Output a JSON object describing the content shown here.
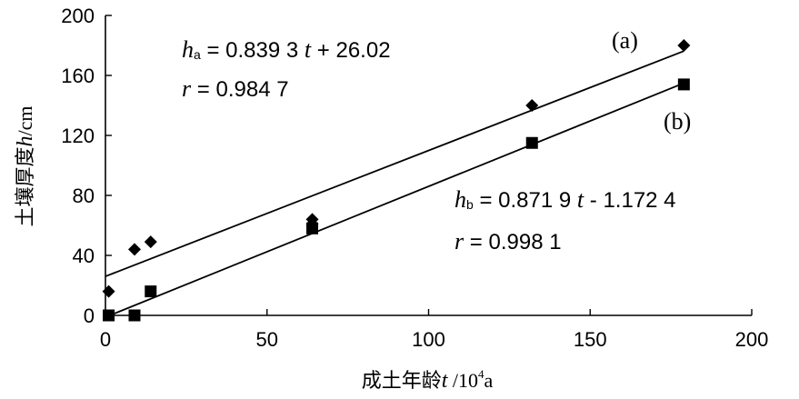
{
  "chart_data": {
    "type": "scatter",
    "xlabel": "成土年龄t /10⁴a",
    "ylabel": "土壤厚度h/cm",
    "xlabel_parts": {
      "prefix": "成土年龄",
      "var": "t",
      "suffix": " /10",
      "sup": "4",
      "unit": "a"
    },
    "ylabel_parts": {
      "prefix": "土壤厚度",
      "var": "h",
      "suffix": "/cm"
    },
    "xlim": [
      0,
      200
    ],
    "ylim": [
      0,
      200
    ],
    "xticks": [
      0,
      50,
      100,
      150,
      200
    ],
    "yticks": [
      0,
      40,
      80,
      120,
      160,
      200
    ],
    "grid": false,
    "series": [
      {
        "name": "(a)",
        "marker": "diamond",
        "color": "#000000",
        "points": [
          [
            1,
            16
          ],
          [
            9,
            44
          ],
          [
            14,
            49
          ],
          [
            64,
            64
          ],
          [
            64,
            61
          ],
          [
            132,
            140
          ],
          [
            179,
            180
          ]
        ],
        "fit": {
          "slope": 0.8393,
          "intercept": 26.02
        }
      },
      {
        "name": "(b)",
        "marker": "square",
        "color": "#000000",
        "points": [
          [
            1,
            0
          ],
          [
            9,
            0
          ],
          [
            14,
            16
          ],
          [
            64,
            58
          ],
          [
            132,
            115
          ],
          [
            179,
            154
          ]
        ],
        "fit": {
          "slope": 0.8719,
          "intercept": -1.1724
        }
      }
    ],
    "annotations": {
      "a_var": "h",
      "a_sub": "a",
      "a_eq": " = 0.839 3 ",
      "a_t": "t",
      "a_rest": " + 26.02",
      "a_r_var": "r",
      "a_r_val": " = 0.984 7",
      "b_var": "h",
      "b_sub": "b",
      "b_eq": " = 0.871 9 ",
      "b_t": "t",
      "b_rest": " - 1.172 4",
      "b_r_var": "r",
      "b_r_val": " = 0.998 1",
      "tag_a": "(a)",
      "tag_b": "(b)"
    }
  }
}
